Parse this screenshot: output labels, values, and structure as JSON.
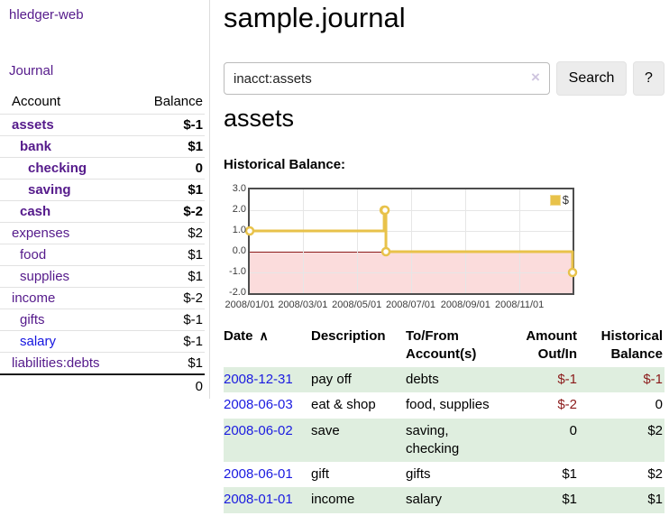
{
  "app": {
    "brand": "hledger-web",
    "nav_journal": "Journal"
  },
  "sidebar": {
    "accounts_header": {
      "account": "Account",
      "balance": "Balance"
    },
    "accounts": [
      {
        "name": "assets",
        "depth": 1,
        "bold": true,
        "name_color": "purple",
        "balance": "$-1",
        "balance_style": "neg-strong"
      },
      {
        "name": "bank",
        "depth": 2,
        "bold": true,
        "name_color": "purple",
        "balance": "$1",
        "balance_style": "normal"
      },
      {
        "name": "checking",
        "depth": 3,
        "bold": true,
        "name_color": "purple",
        "balance": "0",
        "balance_style": "normal"
      },
      {
        "name": "saving",
        "depth": 3,
        "bold": true,
        "name_color": "purple",
        "balance": "$1",
        "balance_style": "normal"
      },
      {
        "name": "cash",
        "depth": 2,
        "bold": true,
        "name_color": "purple",
        "balance": "$-2",
        "balance_style": "neg-strong"
      },
      {
        "name": "expenses",
        "depth": 1,
        "bold": false,
        "name_color": "purple",
        "balance": "$2",
        "balance_style": "normal"
      },
      {
        "name": "food",
        "depth": 2,
        "bold": false,
        "name_color": "purple",
        "balance": "$1",
        "balance_style": "normal"
      },
      {
        "name": "supplies",
        "depth": 2,
        "bold": false,
        "name_color": "purple",
        "balance": "$1",
        "balance_style": "normal"
      },
      {
        "name": "income",
        "depth": 1,
        "bold": false,
        "name_color": "purple",
        "balance": "$-2",
        "balance_style": "neg-soft"
      },
      {
        "name": "gifts",
        "depth": 2,
        "bold": false,
        "name_color": "purple",
        "balance": "$-1",
        "balance_style": "neg-soft"
      },
      {
        "name": "salary",
        "depth": 2,
        "bold": false,
        "name_color": "blue",
        "balance": "$-1",
        "balance_style": "neg-soft"
      },
      {
        "name": "liabilities:debts",
        "depth": 1,
        "bold": false,
        "name_color": "purple",
        "balance": "$1",
        "balance_style": "normal"
      }
    ],
    "total": "0"
  },
  "header": {
    "title": "sample.journal"
  },
  "search": {
    "value": "inacct:assets",
    "clear_icon": "×",
    "search_label": "Search",
    "help_label": "?"
  },
  "account_page": {
    "heading": "assets",
    "chart_title": "Historical Balance:"
  },
  "chart_data": {
    "type": "line",
    "step": true,
    "title": "Historical Balance:",
    "series": [
      {
        "name": "$",
        "color": "#e8c24a",
        "points": [
          [
            "2008-01-01",
            1
          ],
          [
            "2008-06-01",
            2
          ],
          [
            "2008-06-02",
            2
          ],
          [
            "2008-06-03",
            0
          ],
          [
            "2008-12-31",
            -1
          ]
        ]
      }
    ],
    "x_ticks": [
      "2008/01/01",
      "2008/03/01",
      "2008/05/01",
      "2008/07/01",
      "2008/09/01",
      "2008/11/01"
    ],
    "y_ticks": [
      3.0,
      2.0,
      1.0,
      0.0,
      -1.0,
      -2.0
    ],
    "xlim": [
      "2008-01-01",
      "2008-12-31"
    ],
    "ylim": [
      -2,
      3
    ],
    "grid": true,
    "legend_position": "top-right",
    "negative_region_color": "#fbdcdc",
    "zero_line_color": "#8b1a1a"
  },
  "register": {
    "columns": [
      {
        "id": "date",
        "lines": [
          "Date"
        ],
        "align": "left",
        "sortable": true,
        "sort_icon": "∧"
      },
      {
        "id": "description",
        "lines": [
          "Description"
        ],
        "align": "left"
      },
      {
        "id": "accounts",
        "lines": [
          "To/From",
          "Account(s)"
        ],
        "align": "left"
      },
      {
        "id": "amount",
        "lines": [
          "Amount",
          "Out/In"
        ],
        "align": "right"
      },
      {
        "id": "balance",
        "lines": [
          "Historical",
          "Balance"
        ],
        "align": "right"
      }
    ],
    "rows": [
      {
        "date": "2008-12-31",
        "description": "pay off",
        "accounts": "debts",
        "amount": "$-1",
        "amount_neg": true,
        "balance": "$-1",
        "balance_neg": true
      },
      {
        "date": "2008-06-03",
        "description": "eat & shop",
        "accounts": "food, supplies",
        "amount": "$-2",
        "amount_neg": true,
        "balance": "0",
        "balance_neg": false
      },
      {
        "date": "2008-06-02",
        "description": "save",
        "accounts": "saving, checking",
        "amount": "0",
        "amount_neg": false,
        "balance": "$2",
        "balance_neg": false
      },
      {
        "date": "2008-06-01",
        "description": "gift",
        "accounts": "gifts",
        "amount": "$1",
        "amount_neg": false,
        "balance": "$2",
        "balance_neg": false
      },
      {
        "date": "2008-01-01",
        "description": "income",
        "accounts": "salary",
        "amount": "$1",
        "amount_neg": false,
        "balance": "$1",
        "balance_neg": false
      }
    ]
  },
  "colors": {
    "link_purple": "#551a8b",
    "link_blue": "#1515e0",
    "negative_strong": "#8b1a1a",
    "negative_soft": "#b56a6a",
    "row_green": "#dfeedf",
    "chart_line": "#e8c24a",
    "negative_region": "#fbdcdc",
    "zero_line": "#8b1a1a"
  }
}
